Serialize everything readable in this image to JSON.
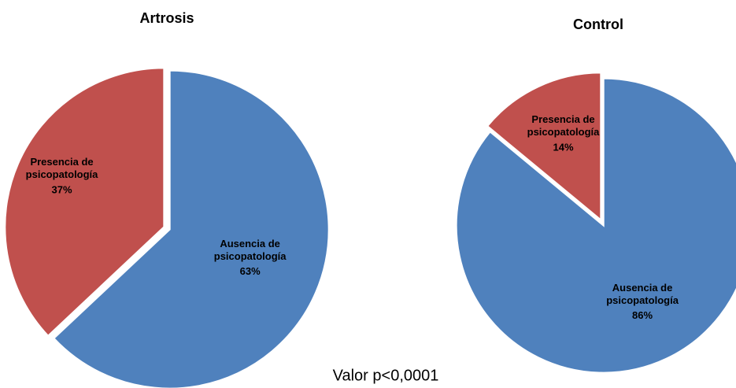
{
  "chart_data": [
    {
      "type": "pie",
      "title": "Artrosis",
      "categories": [
        "Ausencia de psicopatología",
        "Presencia de psicopatología"
      ],
      "values": [
        63,
        37
      ],
      "value_labels": [
        "63%",
        "37%"
      ],
      "colors": [
        "#4f81bd",
        "#c0504d"
      ]
    },
    {
      "type": "pie",
      "title": "Control",
      "categories": [
        "Ausencia de psicopatología",
        "Presencia de psicopatología"
      ],
      "values": [
        86,
        14
      ],
      "value_labels": [
        "86%",
        "14%"
      ],
      "colors": [
        "#4f81bd",
        "#c0504d"
      ]
    }
  ],
  "annotation": "Valor p<0,0001"
}
